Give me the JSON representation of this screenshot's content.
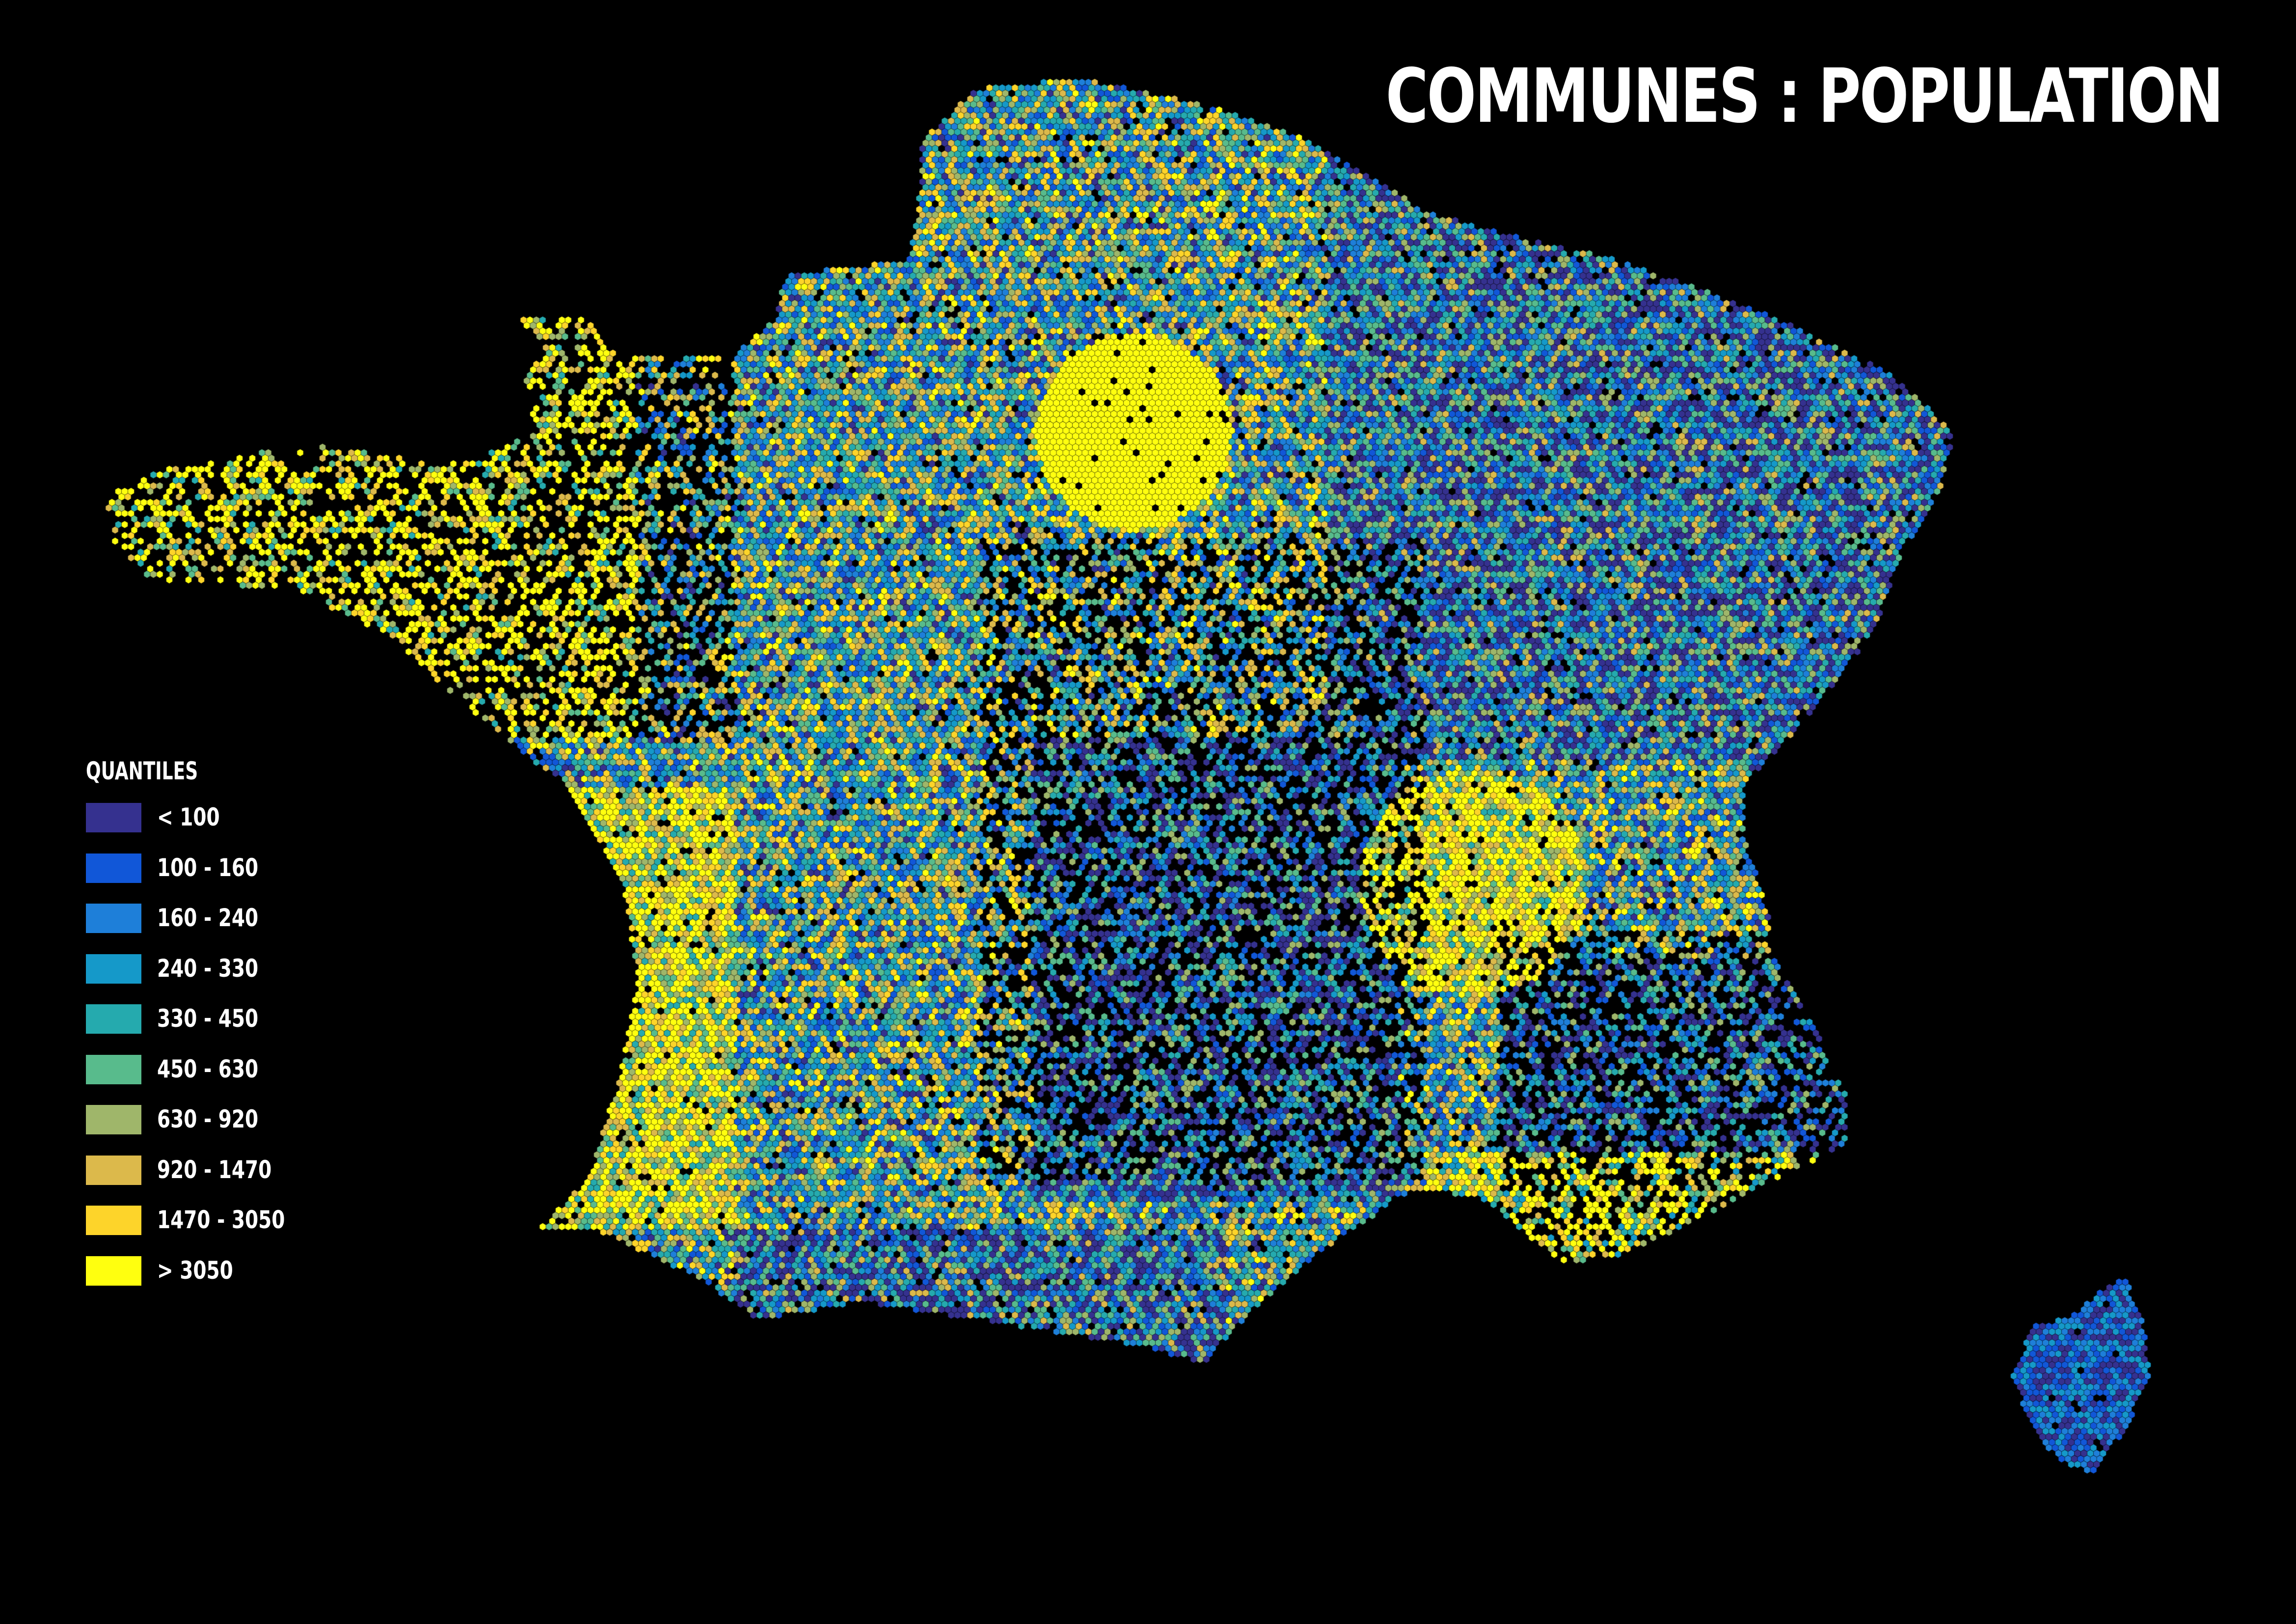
{
  "title": "COMMUNES : POPULATION",
  "legend": {
    "title": "QUANTILES",
    "classes": [
      {
        "label": "< 100",
        "color": "#35318f"
      },
      {
        "label": "100 - 160",
        "color": "#1157d8"
      },
      {
        "label": "160 - 240",
        "color": "#1e7fd9"
      },
      {
        "label": "240 - 330",
        "color": "#1599c9"
      },
      {
        "label": "330 - 450",
        "color": "#25aaae"
      },
      {
        "label": "450 - 630",
        "color": "#58bb8c"
      },
      {
        "label": "630 - 920",
        "color": "#9fb66a"
      },
      {
        "label": "920 - 1470",
        "color": "#dcb94b"
      },
      {
        "label": "1470 - 3050",
        "color": "#fdd42a"
      },
      {
        "label": "> 3050",
        "color": "#ffff0f"
      }
    ]
  },
  "map": {
    "background": "#000000",
    "symbol": "hexagon"
  }
}
